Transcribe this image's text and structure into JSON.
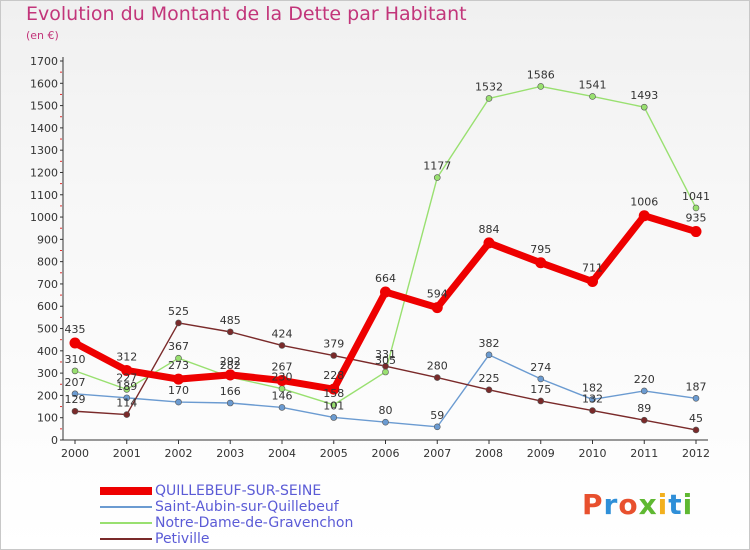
{
  "header": {
    "title": "Evolution du Montant de la Dette par Habitant",
    "unit": "(en €)"
  },
  "logo": {
    "text": "Proxiti",
    "colors": [
      "#e8502e",
      "#2f8fd8",
      "#e8502e",
      "#5fb832",
      "#f2b01e",
      "#2f8fd8",
      "#5fb832"
    ]
  },
  "chart_data": {
    "type": "line",
    "title": "Evolution du Montant de la Dette par Habitant",
    "subtitle": "(en €)",
    "xlabel": "",
    "ylabel": "",
    "x": [
      "2000",
      "2001",
      "2002",
      "2003",
      "2004",
      "2005",
      "2006",
      "2007",
      "2008",
      "2009",
      "2010",
      "2011",
      "2012"
    ],
    "ylim": [
      0,
      1700
    ],
    "yticks": [
      0,
      100,
      200,
      300,
      400,
      500,
      600,
      700,
      800,
      900,
      1000,
      1100,
      1200,
      1300,
      1400,
      1500,
      1600,
      1700
    ],
    "grid": false,
    "legend_position": "bottom-left",
    "series": [
      {
        "name": "QUILLEBEUF-SUR-SEINE",
        "color": "#ee0000",
        "thick": true,
        "values": [
          435,
          312,
          273,
          292,
          267,
          228,
          664,
          594,
          884,
          795,
          711,
          1006,
          935
        ]
      },
      {
        "name": "Saint-Aubin-sur-Quillebeuf",
        "color": "#6b9bd1",
        "thick": false,
        "values": [
          207,
          189,
          170,
          166,
          146,
          101,
          80,
          59,
          382,
          274,
          182,
          220,
          187
        ]
      },
      {
        "name": "Notre-Dame-de-Gravenchon",
        "color": "#99e070",
        "thick": false,
        "values": [
          310,
          227,
          367,
          282,
          230,
          158,
          305,
          1177,
          1532,
          1586,
          1541,
          1493,
          1041
        ]
      },
      {
        "name": "Petiville",
        "color": "#7a2a2a",
        "thick": false,
        "values": [
          129,
          114,
          525,
          485,
          424,
          379,
          331,
          280,
          225,
          175,
          132,
          89,
          45
        ]
      }
    ]
  }
}
